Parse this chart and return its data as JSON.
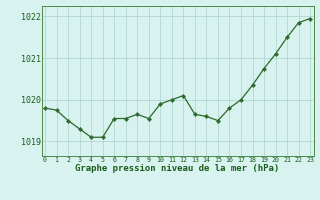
{
  "x": [
    0,
    1,
    2,
    3,
    4,
    5,
    6,
    7,
    8,
    9,
    10,
    11,
    12,
    13,
    14,
    15,
    16,
    17,
    18,
    19,
    20,
    21,
    22,
    23
  ],
  "y": [
    1019.8,
    1019.75,
    1019.5,
    1019.3,
    1019.1,
    1019.1,
    1019.55,
    1019.55,
    1019.65,
    1019.55,
    1019.9,
    1020.0,
    1020.1,
    1019.65,
    1019.6,
    1019.5,
    1019.8,
    1020.0,
    1020.35,
    1020.75,
    1021.1,
    1021.5,
    1021.85,
    1021.95
  ],
  "line_color": "#2d6a2d",
  "marker_color": "#2d6a2d",
  "bg_color": "#d8f2f0",
  "grid_color": "#b0d8d0",
  "title": "Graphe pression niveau de la mer (hPa)",
  "xlabel_ticks": [
    "0",
    "1",
    "2",
    "3",
    "4",
    "5",
    "6",
    "7",
    "8",
    "9",
    "10",
    "11",
    "12",
    "13",
    "14",
    "15",
    "16",
    "17",
    "18",
    "19",
    "20",
    "21",
    "22",
    "23"
  ],
  "yticks": [
    1019,
    1020,
    1021,
    1022
  ],
  "ylim": [
    1018.65,
    1022.25
  ],
  "xlim": [
    -0.3,
    23.3
  ],
  "title_color": "#1a5c1a",
  "tick_color": "#1a5c1a",
  "spine_color": "#4a8a4a"
}
